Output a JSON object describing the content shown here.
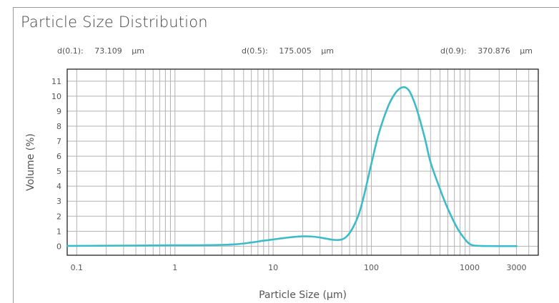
{
  "title": "Particle Size Distribution",
  "stats": [
    {
      "label": "d(0.1):",
      "value": "73.109",
      "unit": "µm"
    },
    {
      "label": "d(0.5):",
      "value": "175.005",
      "unit": "µm"
    },
    {
      "label": "d(0.9):",
      "value": "370.876",
      "unit": "µm"
    }
  ],
  "chart_data": {
    "type": "line",
    "title": "Particle Size Distribution",
    "xlabel": "Particle Size (µm)",
    "ylabel": "Volume (%)",
    "xscale": "log",
    "xlim": [
      0.08,
      5000
    ],
    "ylim": [
      -0.6,
      11.8
    ],
    "grid": true,
    "x_ticks": [
      {
        "value": 0.1,
        "label": "0.1"
      },
      {
        "value": 1,
        "label": "1"
      },
      {
        "value": 10,
        "label": "10"
      },
      {
        "value": 100,
        "label": "100"
      },
      {
        "value": 1000,
        "label": "1000"
      },
      {
        "value": 3000,
        "label": "3000"
      }
    ],
    "y_ticks": [
      0,
      1,
      2,
      3,
      4,
      5,
      6,
      7,
      8,
      9,
      10,
      11
    ],
    "line_color": "#3dbcc8",
    "series": [
      {
        "x": [
          0.08,
          0.3,
          1,
          2,
          4,
          6,
          8,
          10,
          13,
          17,
          22,
          28,
          35,
          42,
          50,
          57,
          65,
          75,
          85,
          100,
          120,
          150,
          180,
          210,
          240,
          270,
          300,
          350,
          400,
          500,
          600,
          750,
          900,
          1000,
          1100,
          1300,
          2000,
          3000
        ],
        "y": [
          0.02,
          0.04,
          0.06,
          0.07,
          0.12,
          0.25,
          0.37,
          0.45,
          0.55,
          0.63,
          0.66,
          0.61,
          0.5,
          0.42,
          0.45,
          0.7,
          1.25,
          2.2,
          3.5,
          5.5,
          7.6,
          9.4,
          10.3,
          10.6,
          10.4,
          9.7,
          8.8,
          7.2,
          5.6,
          3.8,
          2.5,
          1.2,
          0.45,
          0.15,
          0.05,
          0.02,
          0.01,
          0.01
        ]
      }
    ]
  }
}
